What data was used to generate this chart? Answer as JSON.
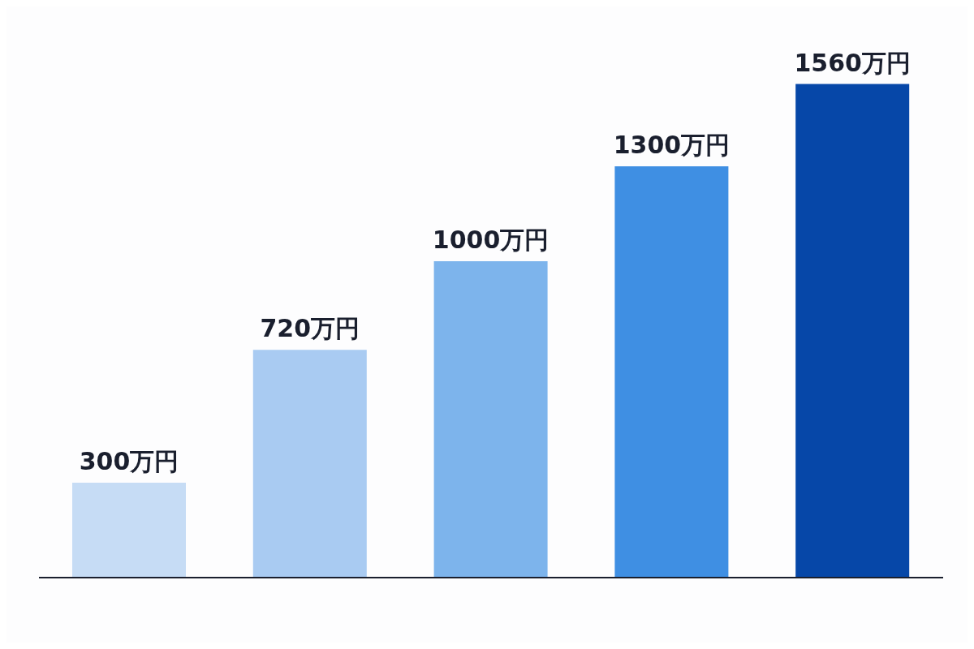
{
  "chart_data": {
    "type": "bar",
    "categories": [
      null,
      null,
      null,
      null,
      null
    ],
    "values": [
      300,
      720,
      1000,
      1300,
      1560
    ],
    "colors": [
      "#c6dcf5",
      "#a9cbf2",
      "#7db4ec",
      "#3f8fe3",
      "#0647a8"
    ],
    "value_labels": [
      "300万円",
      "720万円",
      "1000万円",
      "1300万円",
      "1560万円"
    ]
  }
}
